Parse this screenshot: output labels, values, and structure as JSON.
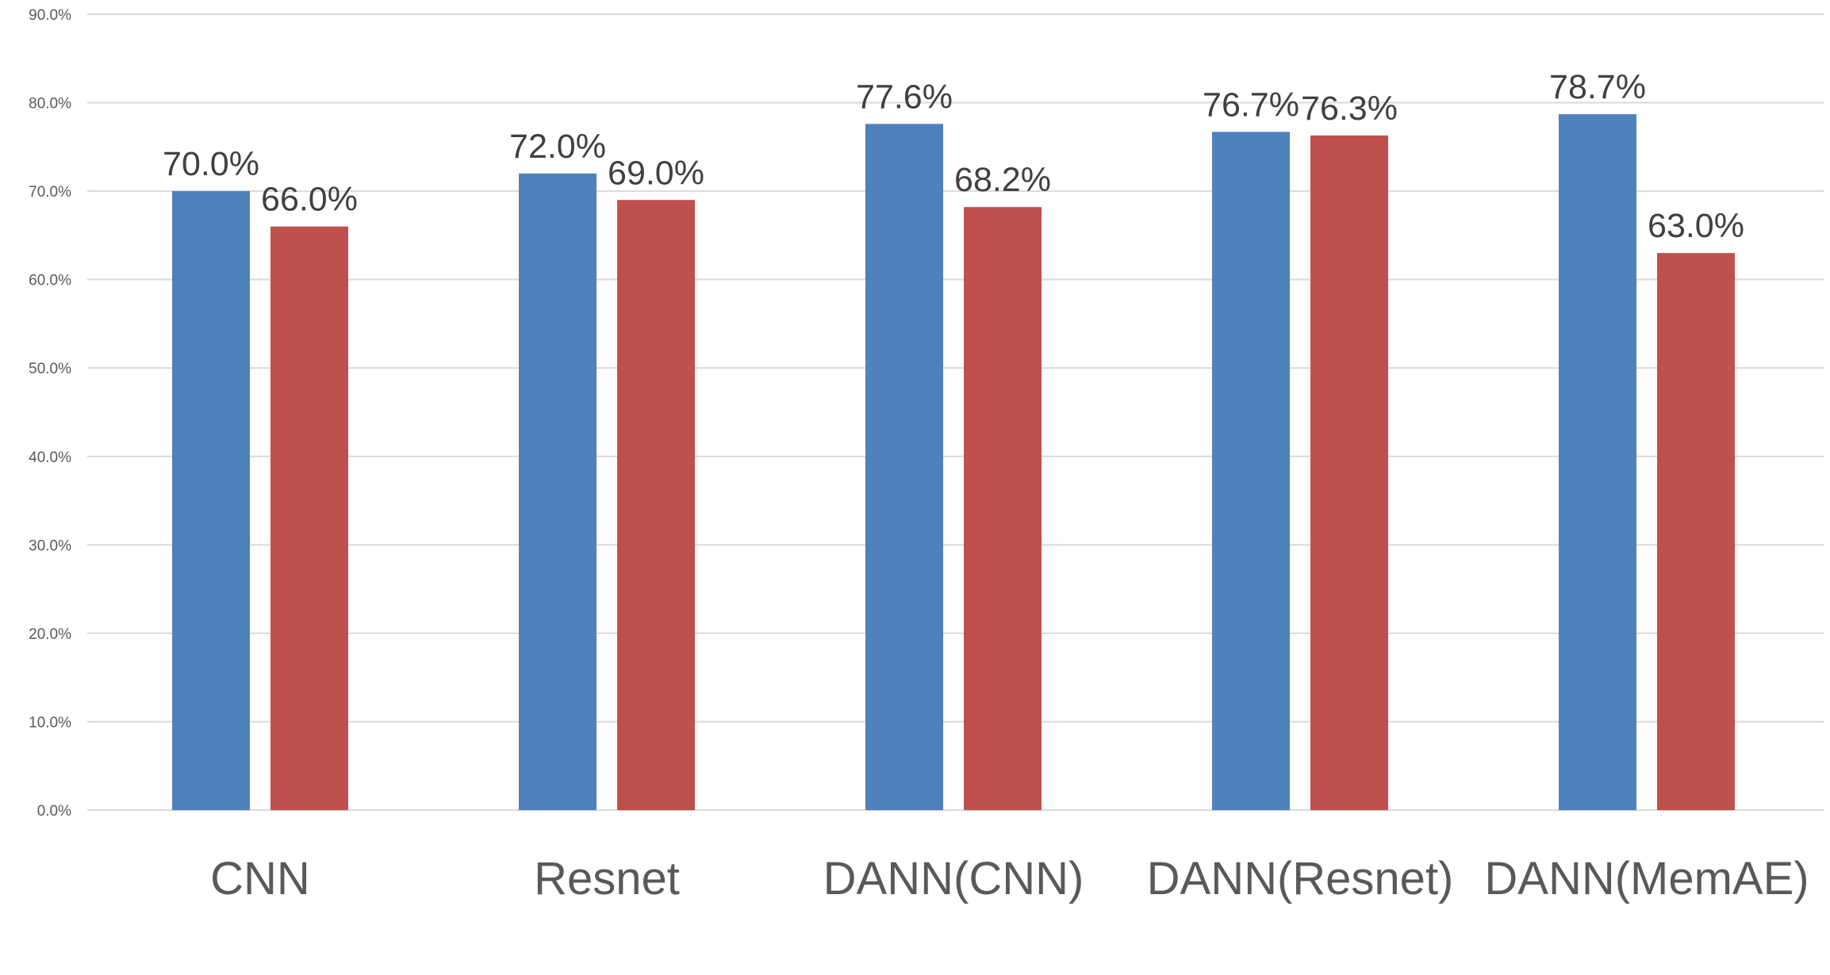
{
  "chart_data": {
    "type": "bar",
    "title": "",
    "xlabel": "",
    "ylabel": "",
    "ylim": [
      0,
      90
    ],
    "yticks": [
      "0.0%",
      "10.0%",
      "20.0%",
      "30.0%",
      "40.0%",
      "50.0%",
      "60.0%",
      "70.0%",
      "80.0%",
      "90.0%"
    ],
    "categories": [
      "CNN",
      "Resnet",
      "DANN(CNN)",
      "DANN(Resnet)",
      "DANN(MemAE)"
    ],
    "series": [
      {
        "color": "#4f81bd",
        "values": [
          70.0,
          72.0,
          77.6,
          76.7,
          78.7
        ],
        "labels": [
          "70.0%",
          "72.0%",
          "77.6%",
          "76.7%",
          "78.7%"
        ]
      },
      {
        "color": "#c0504d",
        "values": [
          66.0,
          69.0,
          68.2,
          76.3,
          63.0
        ],
        "labels": [
          "66.0%",
          "69.0%",
          "68.2%",
          "76.3%",
          "63.0%"
        ]
      }
    ],
    "grid": true,
    "legend": "none"
  }
}
